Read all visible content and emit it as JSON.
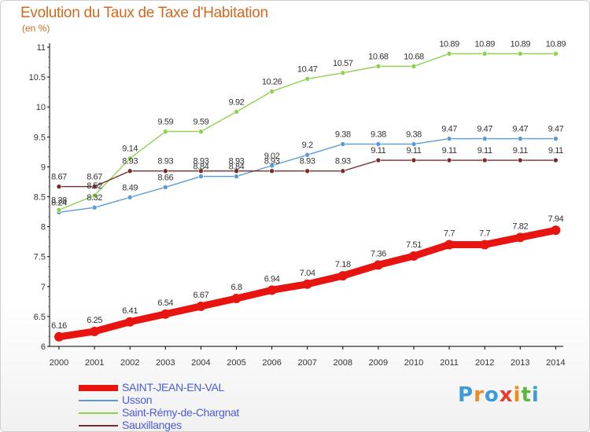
{
  "title": "Evolution du Taux de Taxe d'Habitation",
  "subtitle": "(en %)",
  "logo": {
    "text": "Proxiti",
    "colors": [
      "#3b9cd8",
      "#f08a1c",
      "#3b9cd8",
      "#e63b2e",
      "#f08a1c",
      "#5bb83c",
      "#3b9cd8"
    ]
  },
  "chart_data": {
    "type": "line",
    "title": "Evolution du Taux de Taxe d'Habitation",
    "ylabel": "(en %)",
    "xlabel": "",
    "ylim": [
      6,
      11
    ],
    "yticks": [
      6,
      6.5,
      7,
      7.5,
      8,
      8.5,
      9,
      9.5,
      10,
      10.5,
      11
    ],
    "ytick_labels": [
      "6",
      "6.5",
      "7",
      "7.5",
      "8",
      "8.5",
      "9",
      "9.5",
      "10",
      "10.5",
      "11"
    ],
    "categories": [
      "2000",
      "2001",
      "2002",
      "2003",
      "2004",
      "2005",
      "2006",
      "2007",
      "2008",
      "2009",
      "2010",
      "2011",
      "2012",
      "2013",
      "2014"
    ],
    "grid": false,
    "legend_position": "bottom-left",
    "series": [
      {
        "name": "SAINT-JEAN-EN-VAL",
        "color": "#e8140f",
        "bold": true,
        "values": [
          6.16,
          6.25,
          6.41,
          6.54,
          6.67,
          6.8,
          6.94,
          7.04,
          7.18,
          7.36,
          7.51,
          7.7,
          7.7,
          7.82,
          7.94
        ],
        "labels": [
          "6.16",
          "6.25",
          "6.41",
          "6.54",
          "6.67",
          "6.8",
          "6.94",
          "7.04",
          "7.18",
          "7.36",
          "7.51",
          "7.7",
          "7.7",
          "7.82",
          "7.94"
        ]
      },
      {
        "name": "Usson",
        "color": "#5b9bd5",
        "values": [
          8.24,
          8.32,
          8.49,
          8.66,
          8.84,
          8.84,
          9.02,
          9.2,
          9.38,
          9.38,
          9.38,
          9.47,
          9.47,
          9.47,
          9.47
        ],
        "labels": [
          "8.24",
          "8.32",
          "8.49",
          "8.66",
          "8.84",
          "8.84",
          "9.02",
          "9.2",
          "9.38",
          "9.38",
          "9.38",
          "9.47",
          "9.47",
          "9.47",
          "9.47"
        ]
      },
      {
        "name": "Saint-Rémy-de-Chargnat",
        "color": "#8fd14f",
        "values": [
          8.28,
          8.52,
          9.14,
          9.59,
          9.59,
          9.92,
          10.26,
          10.47,
          10.57,
          10.68,
          10.68,
          10.89,
          10.89,
          10.89,
          10.89
        ],
        "labels": [
          "8.28",
          "8.52",
          "9.14",
          "9.59",
          "9.59",
          "9.92",
          "10.26",
          "10.47",
          "10.57",
          "10.68",
          "10.68",
          "10.89",
          "10.89",
          "10.89",
          "10.89"
        ]
      },
      {
        "name": "Sauxillanges",
        "color": "#7a2c2c",
        "values": [
          8.67,
          8.67,
          8.93,
          8.93,
          8.93,
          8.93,
          8.93,
          8.93,
          8.93,
          9.11,
          9.11,
          9.11,
          9.11,
          9.11,
          9.11
        ],
        "labels": [
          "8.67",
          "8.67",
          "8.93",
          "8.93",
          "8.93",
          "8.93",
          "8.93",
          "8.93",
          "8.93",
          "9.11",
          "9.11",
          "9.11",
          "9.11",
          "9.11",
          "9.11"
        ]
      }
    ]
  }
}
